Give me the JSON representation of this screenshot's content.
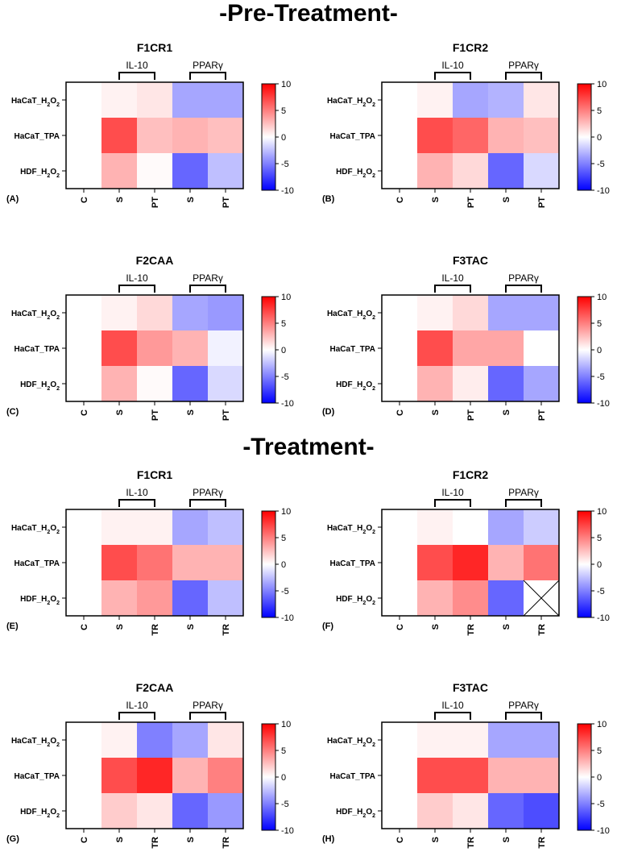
{
  "sections": {
    "pre": "-Pre-Treatment-",
    "treatment": "-Treatment-"
  },
  "colorscale": {
    "min": -10,
    "max": 10,
    "low": "#0000ff",
    "mid": "#ffffff",
    "high": "#ff0000",
    "ticks": [
      "10",
      "5",
      "0",
      "-5",
      "-10"
    ]
  },
  "rows": [
    "HaCaT_H2O2",
    "HaCaT_TPA",
    "HDF_H2O2"
  ],
  "chart_data": [
    {
      "type": "heatmap",
      "label": "(A)",
      "title": "F1CR1",
      "groups": [
        {
          "name": "IL-10"
        },
        {
          "name": "PPARγ"
        }
      ],
      "columns": [
        "C",
        "S",
        "PT",
        "S",
        "PT"
      ],
      "values": [
        [
          0,
          0.5,
          1,
          -3.5,
          -3.5
        ],
        [
          0,
          7,
          2.5,
          3,
          2.5
        ],
        [
          0,
          3,
          0.2,
          -6,
          -2.5
        ]
      ]
    },
    {
      "type": "heatmap",
      "label": "(B)",
      "title": "F1CR2",
      "groups": [
        {
          "name": "IL-10"
        },
        {
          "name": "PPARγ"
        }
      ],
      "columns": [
        "C",
        "S",
        "PT",
        "S",
        "PT"
      ],
      "values": [
        [
          0,
          0.5,
          -3.5,
          -3,
          1
        ],
        [
          0,
          7,
          6,
          3,
          2.5
        ],
        [
          0,
          3,
          1.5,
          -6,
          -1.5
        ]
      ]
    },
    {
      "type": "heatmap",
      "label": "(C)",
      "title": "F2CAA",
      "groups": [
        {
          "name": "IL-10"
        },
        {
          "name": "PPARγ"
        }
      ],
      "columns": [
        "C",
        "S",
        "PT",
        "S",
        "PT"
      ],
      "values": [
        [
          0,
          0.5,
          1.5,
          -3.5,
          -4
        ],
        [
          0,
          7,
          4,
          3,
          -0.5
        ],
        [
          0,
          3,
          0.2,
          -6,
          -1.5
        ]
      ]
    },
    {
      "type": "heatmap",
      "label": "(D)",
      "title": "F3TAC",
      "groups": [
        {
          "name": "IL-10"
        },
        {
          "name": "PPARγ"
        }
      ],
      "columns": [
        "C",
        "S",
        "PT",
        "S",
        "PT"
      ],
      "values": [
        [
          0,
          0.5,
          1.5,
          -3.5,
          -3.5
        ],
        [
          0,
          7,
          3.5,
          3.5,
          0
        ],
        [
          0,
          3,
          0.7,
          -6,
          -3.5
        ]
      ]
    },
    {
      "type": "heatmap",
      "label": "(E)",
      "title": "F1CR1",
      "groups": [
        {
          "name": "IL-10"
        },
        {
          "name": "PPARγ"
        }
      ],
      "columns": [
        "C",
        "S",
        "TR",
        "S",
        "TR"
      ],
      "values": [
        [
          0,
          0.5,
          0.5,
          -3.5,
          -2.5
        ],
        [
          0,
          7,
          5.5,
          3,
          3
        ],
        [
          0,
          3,
          4,
          -6,
          -2.5
        ]
      ]
    },
    {
      "type": "heatmap",
      "label": "(F)",
      "title": "F1CR2",
      "groups": [
        {
          "name": "IL-10"
        },
        {
          "name": "PPARγ"
        }
      ],
      "columns": [
        "C",
        "S",
        "TR",
        "S",
        "TR"
      ],
      "values": [
        [
          0,
          0.5,
          0,
          -3.5,
          -2
        ],
        [
          0,
          7,
          8.5,
          3,
          5.5
        ],
        [
          0,
          3,
          4.5,
          -6,
          null
        ]
      ]
    },
    {
      "type": "heatmap",
      "label": "(G)",
      "title": "F2CAA",
      "groups": [
        {
          "name": "IL-10"
        },
        {
          "name": "PPARγ"
        }
      ],
      "columns": [
        "C",
        "S",
        "TR",
        "S",
        "TR"
      ],
      "values": [
        [
          0,
          0.5,
          -5,
          -3.5,
          1
        ],
        [
          0,
          7,
          8.5,
          3,
          5
        ],
        [
          0,
          2,
          1,
          -6,
          -4
        ]
      ]
    },
    {
      "type": "heatmap",
      "label": "(H)",
      "title": "F3TAC",
      "groups": [
        {
          "name": "IL-10"
        },
        {
          "name": "PPARγ"
        }
      ],
      "columns": [
        "C",
        "S",
        "TR",
        "S",
        "TR"
      ],
      "values": [
        [
          0,
          0.5,
          0.5,
          -3.5,
          -3.5
        ],
        [
          0,
          7,
          7,
          3,
          3
        ],
        [
          0,
          2,
          1,
          -6,
          -7
        ]
      ]
    }
  ]
}
